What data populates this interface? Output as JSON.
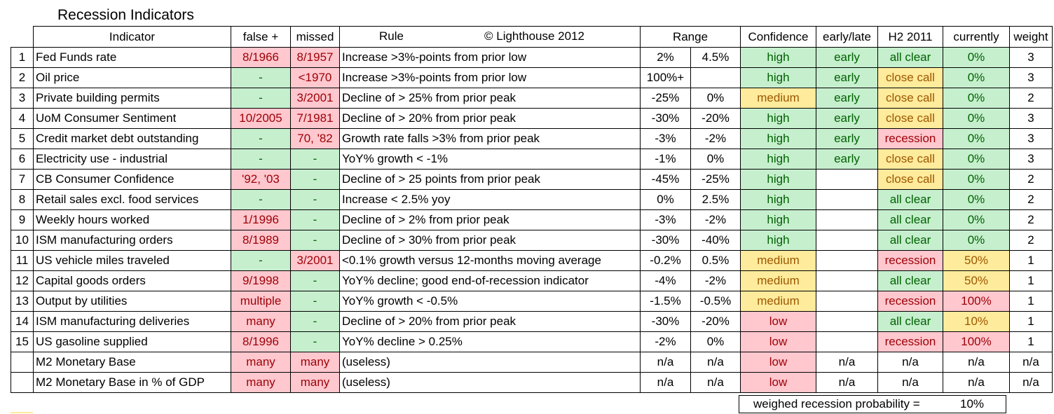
{
  "title": "Recession Indicators",
  "headers": {
    "indicator": "Indicator",
    "false_pos": "false +",
    "missed": "missed",
    "rule": "Rule",
    "copyright": "© Lighthouse 2012",
    "range": "Range",
    "confidence": "Confidence",
    "early_late": "early/late",
    "h2": "H2 2011",
    "currently": "currently",
    "weight": "weight"
  },
  "colors": {
    "red_bg": "#ffc7ce",
    "red_fg": "#9c0006",
    "green_bg": "#c6efce",
    "green_fg": "#006100",
    "yellow_bg": "#ffeb9c",
    "yellow_fg": "#9c5700"
  },
  "rows": [
    {
      "n": "1",
      "indicator": "Fed Funds rate",
      "fp": "8/1966",
      "fp_c": "red",
      "missed": "8/1957",
      "missed_c": "red",
      "rule": "Increase >3%-points from prior low",
      "r1": "2%",
      "r2": "4.5%",
      "conf": "high",
      "conf_c": "green",
      "el": "early",
      "el_c": "green",
      "h2": "all clear",
      "h2_c": "green",
      "cur": "0%",
      "cur_c": "green",
      "w": "3"
    },
    {
      "n": "2",
      "indicator": "Oil price",
      "fp": "-",
      "fp_c": "green",
      "missed": "<1970",
      "missed_c": "red",
      "rule": "Increase >3%-points from prior low",
      "r1": "100%+",
      "r2": "",
      "conf": "high",
      "conf_c": "green",
      "el": "early",
      "el_c": "green",
      "h2": "close call",
      "h2_c": "yellow",
      "cur": "0%",
      "cur_c": "green",
      "w": "3"
    },
    {
      "n": "3",
      "indicator": "Private building permits",
      "fp": "-",
      "fp_c": "green",
      "missed": "3/2001",
      "missed_c": "red",
      "rule": "Decline of > 25% from prior peak",
      "r1": "-25%",
      "r2": "0%",
      "conf": "medium",
      "conf_c": "yellow",
      "el": "early",
      "el_c": "green",
      "h2": "close call",
      "h2_c": "yellow",
      "cur": "0%",
      "cur_c": "green",
      "w": "2"
    },
    {
      "n": "4",
      "indicator": "UoM Consumer Sentiment",
      "fp": "10/2005",
      "fp_c": "red",
      "missed": "7/1981",
      "missed_c": "red",
      "rule": "Decline of > 20% from prior peak",
      "r1": "-30%",
      "r2": "-20%",
      "conf": "high",
      "conf_c": "green",
      "el": "early",
      "el_c": "green",
      "h2": "close call",
      "h2_c": "yellow",
      "cur": "0%",
      "cur_c": "green",
      "w": "3"
    },
    {
      "n": "5",
      "indicator": "Credit market debt outstanding",
      "fp": "-",
      "fp_c": "green",
      "missed": "70, '82",
      "missed_c": "red",
      "rule": "Growth rate falls >3% from prior peak",
      "r1": "-3%",
      "r2": "-2%",
      "conf": "high",
      "conf_c": "green",
      "el": "early",
      "el_c": "green",
      "h2": "recession",
      "h2_c": "red",
      "cur": "0%",
      "cur_c": "green",
      "w": "3"
    },
    {
      "n": "6",
      "indicator": "Electricity use - industrial",
      "fp": "-",
      "fp_c": "green",
      "missed": "-",
      "missed_c": "green",
      "rule": "YoY% growth < -1%",
      "r1": "-1%",
      "r2": "0%",
      "conf": "high",
      "conf_c": "green",
      "el": "early",
      "el_c": "green",
      "h2": "close call",
      "h2_c": "yellow",
      "cur": "0%",
      "cur_c": "green",
      "w": "3"
    },
    {
      "n": "7",
      "indicator": "CB Consumer Confidence",
      "fp": "'92, '03",
      "fp_c": "red",
      "missed": "-",
      "missed_c": "green",
      "rule": "Decline of > 25 points from prior peak",
      "r1": "-45%",
      "r2": "-25%",
      "conf": "high",
      "conf_c": "green",
      "el": "",
      "el_c": "none",
      "h2": "close call",
      "h2_c": "yellow",
      "cur": "0%",
      "cur_c": "green",
      "w": "2"
    },
    {
      "n": "8",
      "indicator": "Retail sales excl. food services",
      "fp": "-",
      "fp_c": "green",
      "missed": "-",
      "missed_c": "green",
      "rule": "Increase < 2.5% yoy",
      "r1": "0%",
      "r2": "2.5%",
      "conf": "high",
      "conf_c": "green",
      "el": "",
      "el_c": "none",
      "h2": "all clear",
      "h2_c": "green",
      "cur": "0%",
      "cur_c": "green",
      "w": "2"
    },
    {
      "n": "9",
      "indicator": "Weekly hours worked",
      "fp": "1/1996",
      "fp_c": "red",
      "missed": "-",
      "missed_c": "green",
      "rule": "Decline of > 2% from prior peak",
      "r1": "-3%",
      "r2": "-2%",
      "conf": "high",
      "conf_c": "green",
      "el": "",
      "el_c": "none",
      "h2": "all clear",
      "h2_c": "green",
      "cur": "0%",
      "cur_c": "green",
      "w": "2"
    },
    {
      "n": "10",
      "indicator": "ISM manufacturing orders",
      "fp": "8/1989",
      "fp_c": "red",
      "missed": "-",
      "missed_c": "green",
      "rule": "Decline of > 30% from prior peak",
      "r1": "-30%",
      "r2": "-40%",
      "conf": "high",
      "conf_c": "green",
      "el": "",
      "el_c": "none",
      "h2": "all clear",
      "h2_c": "green",
      "cur": "0%",
      "cur_c": "green",
      "w": "2"
    },
    {
      "n": "11",
      "indicator": "US vehicle miles traveled",
      "fp": "-",
      "fp_c": "green",
      "missed": "3/2001",
      "missed_c": "red",
      "rule": "<0.1% growth versus 12-months moving average",
      "r1": "-0.2%",
      "r2": "0.5%",
      "conf": "medium",
      "conf_c": "yellow",
      "el": "",
      "el_c": "none",
      "h2": "recession",
      "h2_c": "red",
      "cur": "50%",
      "cur_c": "yellow",
      "w": "1"
    },
    {
      "n": "12",
      "indicator": "Capital goods orders",
      "fp": "9/1998",
      "fp_c": "red",
      "missed": "-",
      "missed_c": "green",
      "rule": "YoY% decline; good end-of-recession indicator",
      "r1": "-4%",
      "r2": "-2%",
      "conf": "medium",
      "conf_c": "yellow",
      "el": "",
      "el_c": "none",
      "h2": "all clear",
      "h2_c": "green",
      "cur": "50%",
      "cur_c": "yellow",
      "w": "1"
    },
    {
      "n": "13",
      "indicator": "Output by utilities",
      "fp": "multiple",
      "fp_c": "red",
      "missed": "-",
      "missed_c": "green",
      "rule": "YoY% growth < -0.5%",
      "r1": "-1.5%",
      "r2": "-0.5%",
      "conf": "medium",
      "conf_c": "yellow",
      "el": "",
      "el_c": "none",
      "h2": "recession",
      "h2_c": "red",
      "cur": "100%",
      "cur_c": "red",
      "w": "1"
    },
    {
      "n": "14",
      "indicator": "ISM manufacturing deliveries",
      "fp": "many",
      "fp_c": "red",
      "missed": "-",
      "missed_c": "green",
      "rule": "Decline of > 20% from prior peak",
      "r1": "-30%",
      "r2": "-20%",
      "conf": "low",
      "conf_c": "red",
      "el": "",
      "el_c": "none",
      "h2": "all clear",
      "h2_c": "green",
      "cur": "10%",
      "cur_c": "yellow",
      "w": "1"
    },
    {
      "n": "15",
      "indicator": "US gasoline supplied",
      "fp": "8/1996",
      "fp_c": "red",
      "missed": "-",
      "missed_c": "green",
      "rule": "YoY% decline > 0.25%",
      "r1": "-2%",
      "r2": "0%",
      "conf": "low",
      "conf_c": "red",
      "el": "",
      "el_c": "none",
      "h2": "recession",
      "h2_c": "red",
      "cur": "100%",
      "cur_c": "red",
      "w": "1"
    },
    {
      "n": "",
      "indicator": "M2 Monetary Base",
      "fp": "many",
      "fp_c": "red",
      "missed": "many",
      "missed_c": "red",
      "rule": "(useless)",
      "r1": "n/a",
      "r2": "n/a",
      "conf": "low",
      "conf_c": "red",
      "el": "n/a",
      "el_c": "none",
      "h2": "n/a",
      "h2_c": "none",
      "cur": "n/a",
      "cur_c": "none",
      "w": "n/a"
    },
    {
      "n": "",
      "indicator": "M2 Monetary Base in % of GDP",
      "fp": "many",
      "fp_c": "red",
      "missed": "many",
      "missed_c": "red",
      "rule": "(useless)",
      "r1": "n/a",
      "r2": "n/a",
      "conf": "low",
      "conf_c": "red",
      "el": "n/a",
      "el_c": "none",
      "h2": "n/a",
      "h2_c": "none",
      "cur": "n/a",
      "cur_c": "none",
      "w": "n/a"
    }
  ],
  "summary": {
    "label": "weighed recession probability =",
    "value": "10%"
  }
}
